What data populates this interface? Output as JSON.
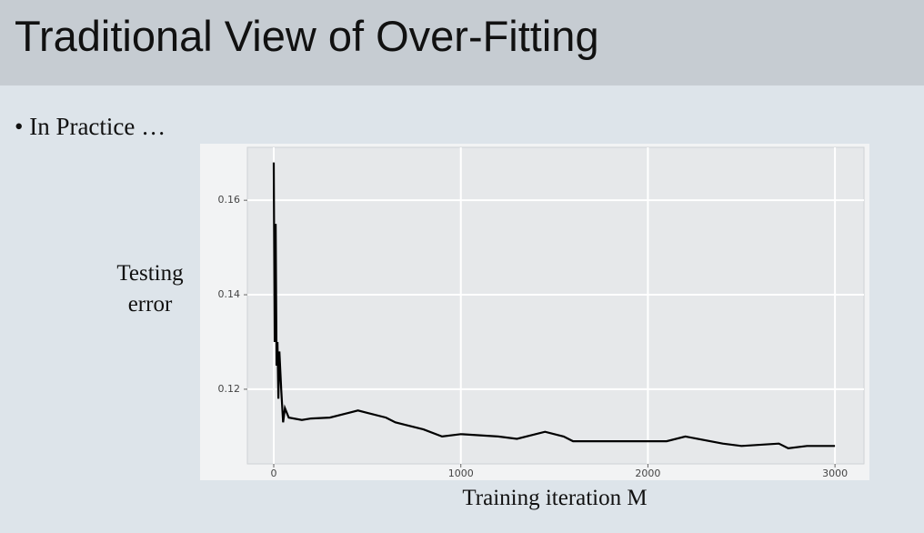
{
  "slide_title": "Traditional View of Over-Fitting",
  "bullet": "• In Practice …",
  "chart_data": {
    "type": "line",
    "y_label": "Testing error",
    "x_label": "Training iteration M",
    "x": [
      0,
      5,
      10,
      15,
      20,
      25,
      30,
      40,
      50,
      60,
      80,
      150,
      200,
      300,
      400,
      450,
      500,
      600,
      650,
      700,
      800,
      900,
      1000,
      1200,
      1300,
      1450,
      1550,
      1600,
      1800,
      2100,
      2200,
      2400,
      2500,
      2700,
      2750,
      2850,
      3000
    ],
    "values": [
      0.168,
      0.13,
      0.155,
      0.125,
      0.13,
      0.118,
      0.128,
      0.12,
      0.113,
      0.116,
      0.114,
      0.1135,
      0.1138,
      0.114,
      0.115,
      0.1155,
      0.115,
      0.114,
      0.113,
      0.1125,
      0.1115,
      0.11,
      0.1105,
      0.11,
      0.1095,
      0.111,
      0.11,
      0.109,
      0.109,
      0.109,
      0.11,
      0.1085,
      0.108,
      0.1085,
      0.1075,
      0.108,
      0.108
    ],
    "color": "#000000",
    "xlim": [
      -141,
      3155
    ],
    "ylim": [
      0.1042,
      0.1712
    ],
    "xticks": [
      0,
      1000,
      2000,
      3000
    ],
    "yticks": [
      0.12,
      0.14,
      0.16
    ],
    "grid": true
  }
}
